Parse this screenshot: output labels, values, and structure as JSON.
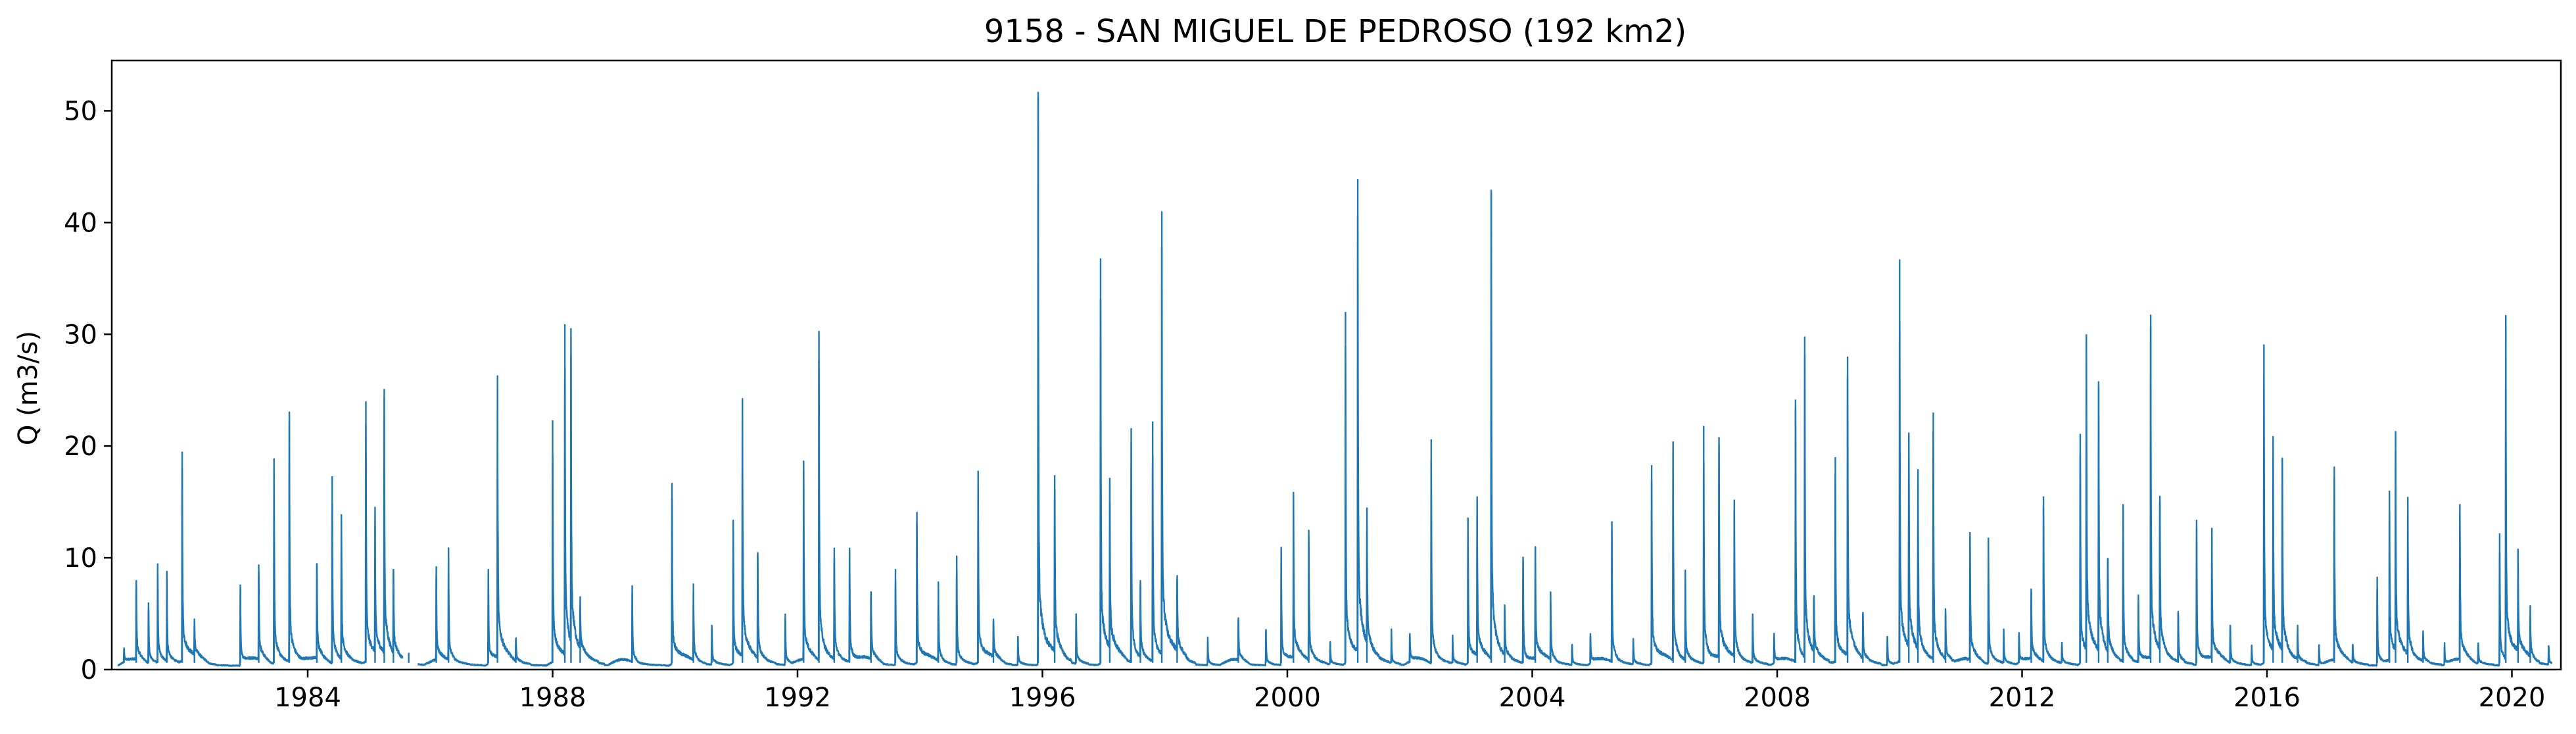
{
  "chart_data": {
    "type": "line",
    "title": "9158 - SAN MIGUEL DE PEDROSO (192 km2)",
    "xlabel": "",
    "ylabel": "Q (m3/s)",
    "xlim": [
      1980.8,
      2020.8
    ],
    "ylim": [
      0,
      54.5
    ],
    "grid": false,
    "legend": "none",
    "colors": {
      "series": "#1f77b4"
    },
    "x_ticks": [
      1984,
      1988,
      1992,
      1996,
      2000,
      2004,
      2008,
      2012,
      2016,
      2020
    ],
    "x_tick_labels": [
      "1984",
      "1988",
      "1992",
      "1996",
      "2000",
      "2004",
      "2008",
      "2012",
      "2016",
      "2020"
    ],
    "y_ticks": [
      0,
      10,
      20,
      30,
      40,
      50
    ],
    "y_tick_labels": [
      "0",
      "10",
      "20",
      "30",
      "40",
      "50"
    ],
    "series": [
      {
        "name": "",
        "peaks": [
          [
            1981.0,
            1.5
          ],
          [
            1981.2,
            8.0
          ],
          [
            1981.4,
            6.0
          ],
          [
            1981.55,
            9.5
          ],
          [
            1981.7,
            8.0
          ],
          [
            1981.95,
            19.5
          ],
          [
            1982.15,
            3.5
          ],
          [
            1982.9,
            7.2
          ],
          [
            1983.2,
            9.4
          ],
          [
            1983.45,
            18.9
          ],
          [
            1983.7,
            22.3
          ],
          [
            1984.15,
            9.5
          ],
          [
            1984.4,
            17.3
          ],
          [
            1984.55,
            13.9
          ],
          [
            1984.95,
            24.0
          ],
          [
            1985.1,
            12.8
          ],
          [
            1985.25,
            25.1
          ],
          [
            1985.4,
            9.0
          ],
          [
            1985.65,
            1.5
          ],
          [
            1986.1,
            8.3
          ],
          [
            1986.3,
            10.0
          ],
          [
            1986.95,
            9.0
          ],
          [
            1987.1,
            25.1
          ],
          [
            1987.4,
            2.5
          ],
          [
            1988.0,
            22.3
          ],
          [
            1988.2,
            30.9
          ],
          [
            1988.3,
            28.0
          ],
          [
            1988.45,
            5.0
          ],
          [
            1989.3,
            6.8
          ],
          [
            1989.95,
            16.7
          ],
          [
            1990.3,
            6.8
          ],
          [
            1990.6,
            4.0
          ],
          [
            1990.95,
            13.4
          ],
          [
            1991.1,
            22.9
          ],
          [
            1991.35,
            10.5
          ],
          [
            1991.8,
            5.0
          ],
          [
            1992.1,
            17.7
          ],
          [
            1992.35,
            30.3
          ],
          [
            1992.6,
            10.9
          ],
          [
            1992.85,
            10.9
          ],
          [
            1993.2,
            7.0
          ],
          [
            1993.6,
            9.0
          ],
          [
            1993.95,
            14.1
          ],
          [
            1994.3,
            7.0
          ],
          [
            1994.6,
            10.2
          ],
          [
            1994.95,
            17.8
          ],
          [
            1995.2,
            4.0
          ],
          [
            1995.6,
            3.0
          ],
          [
            1995.93,
            51.7
          ],
          [
            1996.2,
            17.4
          ],
          [
            1996.55,
            5.0
          ],
          [
            1996.95,
            36.8
          ],
          [
            1997.1,
            15.0
          ],
          [
            1997.45,
            21.6
          ],
          [
            1997.6,
            8.0
          ],
          [
            1997.8,
            22.2
          ],
          [
            1997.95,
            41.0
          ],
          [
            1998.2,
            8.0
          ],
          [
            1998.7,
            2.5
          ],
          [
            1999.2,
            4.5
          ],
          [
            1999.65,
            3.5
          ],
          [
            1999.9,
            10.5
          ],
          [
            2000.1,
            14.7
          ],
          [
            2000.35,
            12.5
          ],
          [
            2000.7,
            2.0
          ],
          [
            2000.95,
            32.0
          ],
          [
            2001.15,
            43.9
          ],
          [
            2001.3,
            12.0
          ],
          [
            2001.7,
            3.0
          ],
          [
            2002.0,
            3.0
          ],
          [
            2002.35,
            20.6
          ],
          [
            2002.7,
            2.5
          ],
          [
            2002.95,
            13.6
          ],
          [
            2003.1,
            14.1
          ],
          [
            2003.33,
            42.7
          ],
          [
            2003.55,
            5.0
          ],
          [
            2003.85,
            10.1
          ],
          [
            2004.05,
            10.9
          ],
          [
            2004.3,
            6.0
          ],
          [
            2004.65,
            2.0
          ],
          [
            2004.95,
            3.0
          ],
          [
            2005.3,
            12.5
          ],
          [
            2005.65,
            2.5
          ],
          [
            2005.95,
            18.3
          ],
          [
            2006.3,
            19.5
          ],
          [
            2006.5,
            8.0
          ],
          [
            2006.8,
            21.8
          ],
          [
            2007.05,
            20.8
          ],
          [
            2007.3,
            14.0
          ],
          [
            2007.6,
            5.0
          ],
          [
            2007.95,
            3.0
          ],
          [
            2008.3,
            23.4
          ],
          [
            2008.45,
            29.8
          ],
          [
            2008.6,
            6.0
          ],
          [
            2008.95,
            19.0
          ],
          [
            2009.15,
            28.0
          ],
          [
            2009.4,
            5.0
          ],
          [
            2009.8,
            3.0
          ],
          [
            2010.0,
            36.7
          ],
          [
            2010.15,
            21.2
          ],
          [
            2010.3,
            16.0
          ],
          [
            2010.55,
            23.0
          ],
          [
            2010.75,
            5.0
          ],
          [
            2011.15,
            12.3
          ],
          [
            2011.45,
            11.8
          ],
          [
            2011.7,
            3.0
          ],
          [
            2011.95,
            3.0
          ],
          [
            2012.15,
            7.0
          ],
          [
            2012.35,
            15.5
          ],
          [
            2012.65,
            2.0
          ],
          [
            2012.95,
            21.1
          ],
          [
            2013.05,
            30.0
          ],
          [
            2013.25,
            25.8
          ],
          [
            2013.4,
            10.0
          ],
          [
            2013.65,
            14.8
          ],
          [
            2013.9,
            6.0
          ],
          [
            2014.1,
            30.6
          ],
          [
            2014.25,
            15.0
          ],
          [
            2014.55,
            5.0
          ],
          [
            2014.85,
            13.4
          ],
          [
            2015.1,
            11.5
          ],
          [
            2015.4,
            4.0
          ],
          [
            2015.75,
            2.0
          ],
          [
            2015.95,
            29.1
          ],
          [
            2016.1,
            19.0
          ],
          [
            2016.25,
            18.8
          ],
          [
            2016.5,
            3.0
          ],
          [
            2016.85,
            2.0
          ],
          [
            2017.1,
            17.2
          ],
          [
            2017.4,
            2.0
          ],
          [
            2017.8,
            8.3
          ],
          [
            2018.0,
            16.0
          ],
          [
            2018.1,
            19.5
          ],
          [
            2018.3,
            14.0
          ],
          [
            2018.55,
            3.0
          ],
          [
            2018.9,
            2.0
          ],
          [
            2019.15,
            14.8
          ],
          [
            2019.45,
            2.0
          ],
          [
            2019.8,
            12.2
          ],
          [
            2019.9,
            30.7
          ],
          [
            2020.1,
            9.0
          ],
          [
            2020.3,
            4.5
          ],
          [
            2020.6,
            2.0
          ]
        ],
        "gaps": [
          [
            1985.55,
            1985.8
          ]
        ]
      }
    ]
  }
}
